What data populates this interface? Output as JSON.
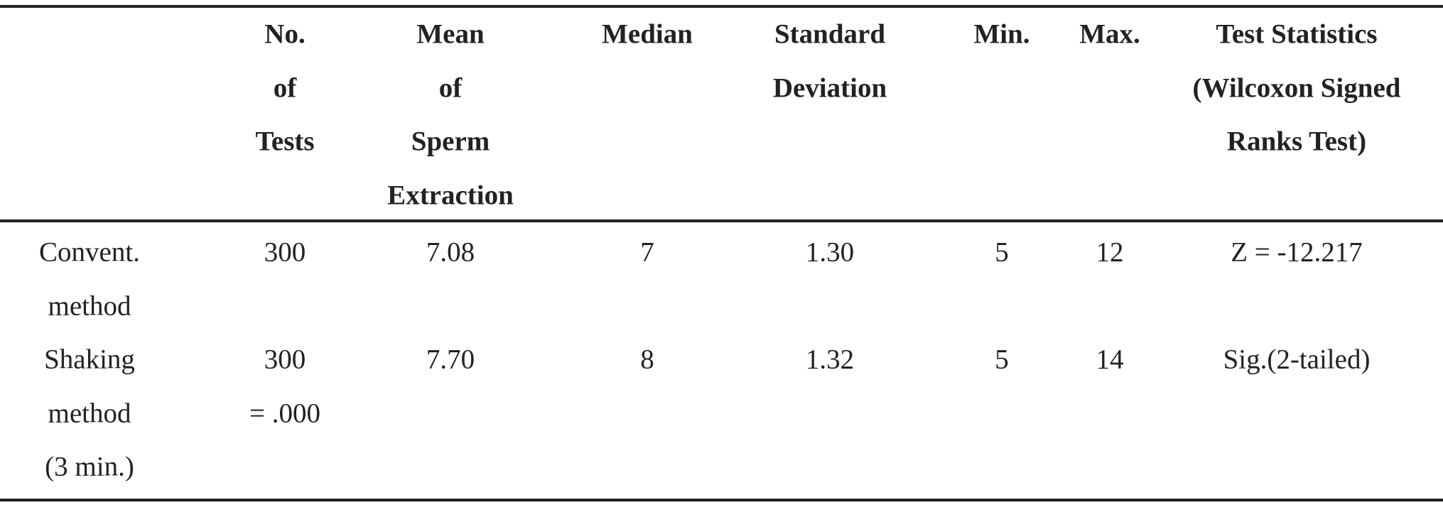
{
  "table": {
    "header": [
      [],
      [
        "No.",
        "of",
        "Tests"
      ],
      [
        "Mean",
        "of",
        "Sperm",
        "Extraction"
      ],
      [
        "Median"
      ],
      [
        "Standard",
        "Deviation"
      ],
      [
        "Min."
      ],
      [
        "Max."
      ],
      [
        "Test Statistics",
        "(Wilcoxon Signed",
        "Ranks Test)"
      ]
    ],
    "rows": [
      [
        [
          "Convent.",
          "method"
        ],
        [
          "300"
        ],
        [
          "7.08"
        ],
        [
          "7"
        ],
        [
          "1.30"
        ],
        [
          "5"
        ],
        [
          "12"
        ],
        [
          "Z = -12.217"
        ]
      ],
      [
        [
          "Shaking",
          "method",
          "(3 min.)"
        ],
        [
          "300",
          "= .000"
        ],
        [
          "7.70"
        ],
        [
          "8"
        ],
        [
          "1.32"
        ],
        [
          "5"
        ],
        [
          "14"
        ],
        [
          "Sig.(2-tailed)"
        ]
      ]
    ]
  }
}
